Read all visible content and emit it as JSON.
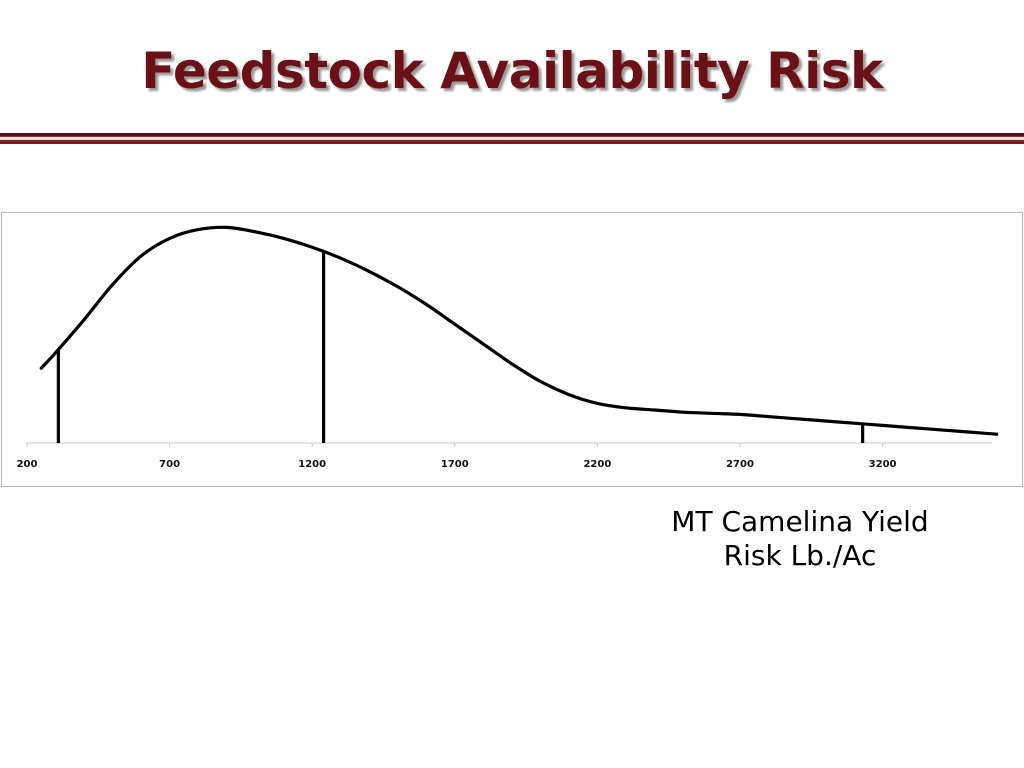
{
  "slide": {
    "title": "Feedstock Availability Risk",
    "title_color": "#6b1116",
    "caption_line1": "MT Camelina Yield",
    "caption_line2": "Risk  Lb./Ac"
  },
  "chart_data": {
    "type": "area",
    "title": "",
    "xlabel": "MT Camelina Yield Risk  Lb./Ac",
    "ylabel": "",
    "xlim": [
      200,
      3600
    ],
    "ylim": [
      0,
      1
    ],
    "x_ticks": [
      200,
      700,
      1200,
      1700,
      2200,
      2700,
      3200
    ],
    "tick_labels": [
      "200",
      "700",
      "1200",
      "1700",
      "2200",
      "2700",
      "3200"
    ],
    "grid": false,
    "legend": "none",
    "line_color": "#000000",
    "series": [
      {
        "x": [
          250,
          300,
          400,
          500,
          600,
          700,
          800,
          900,
          1000,
          1100,
          1200,
          1300,
          1400,
          1500,
          1600,
          1700,
          1800,
          1900,
          2000,
          2100,
          2200,
          2300,
          2400,
          2500,
          2600,
          2700,
          2800,
          2900,
          3000,
          3100,
          3200,
          3300,
          3400,
          3500,
          3600
        ],
        "values": [
          0.34,
          0.41,
          0.56,
          0.72,
          0.85,
          0.93,
          0.97,
          0.98,
          0.96,
          0.93,
          0.89,
          0.84,
          0.78,
          0.71,
          0.63,
          0.54,
          0.45,
          0.36,
          0.28,
          0.22,
          0.18,
          0.16,
          0.15,
          0.14,
          0.135,
          0.13,
          0.12,
          0.11,
          0.1,
          0.09,
          0.08,
          0.07,
          0.06,
          0.05,
          0.04
        ]
      }
    ],
    "markers": [
      {
        "x": 310
      },
      {
        "x": 1240
      },
      {
        "x": 3130
      }
    ]
  }
}
